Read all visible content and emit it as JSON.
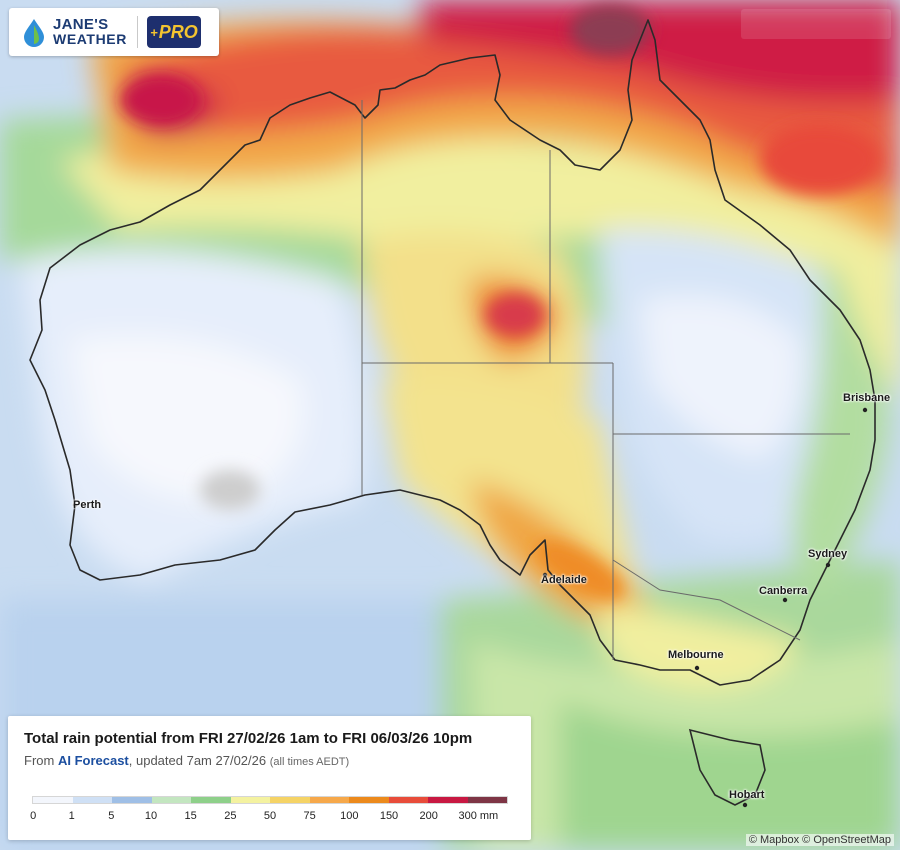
{
  "brand": {
    "line1": "JANE'S",
    "line2": "WEATHER",
    "pro": "PRO",
    "icon": "water-drop-leaf-icon"
  },
  "places": [
    {
      "id": "perth",
      "label": "Perth"
    },
    {
      "id": "adelaide",
      "label": "Adelaide"
    },
    {
      "id": "melbourne",
      "label": "Melbourne"
    },
    {
      "id": "canberra",
      "label": "Canberra"
    },
    {
      "id": "sydney",
      "label": "Sydney"
    },
    {
      "id": "brisbane",
      "label": "Brisbane"
    },
    {
      "id": "hobart",
      "label": "Hobart"
    }
  ],
  "legend": {
    "title": "Total rain potential from FRI 27/02/26 1am to FRI 06/03/26 10pm",
    "subtitle_prefix": "From ",
    "subtitle_source": "AI Forecast",
    "subtitle_updated": ", updated 7am 27/02/26 ",
    "subtitle_tz": "(all times AEDT)",
    "colors": [
      "#f3f6fc",
      "#cfe0f5",
      "#9fbfe6",
      "#c3e6c0",
      "#8ed08a",
      "#f4f2a0",
      "#f5d365",
      "#f6a84a",
      "#ec8a1c",
      "#e84c3a",
      "#c81842",
      "#7e3545"
    ],
    "ticks": [
      "0",
      "1",
      "5",
      "10",
      "15",
      "25",
      "50",
      "75",
      "100",
      "150",
      "200",
      "300 mm"
    ]
  },
  "attribution": "© Mapbox © OpenStreetMap"
}
